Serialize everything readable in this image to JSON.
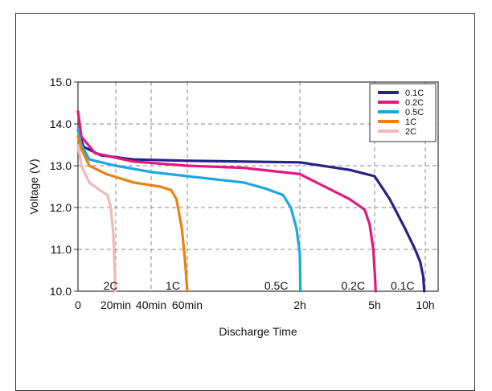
{
  "chart_data": {
    "type": "line",
    "title": "",
    "xlabel": "Discharge Time",
    "ylabel": "Voltage (V)",
    "ylim": [
      10.0,
      15.0
    ],
    "x_scale": "nonlinear (piecewise)",
    "x_ticks": [
      "0",
      "20min",
      "40min",
      "60min",
      "2h",
      "5h",
      "10h"
    ],
    "x_tick_hours": [
      0,
      0.333,
      0.667,
      1,
      2,
      5,
      10
    ],
    "y_ticks": [
      "10.0",
      "11.0",
      "12.0",
      "13.0",
      "14.0",
      "15.0"
    ],
    "y_tick_values": [
      10,
      11,
      12,
      13,
      14,
      15
    ],
    "grid": "dashed",
    "legend_position": "top-right",
    "series": [
      {
        "name": "0.1C",
        "color": "#23238a",
        "end_label": "0.1C",
        "points": [
          [
            0,
            13.85
          ],
          [
            0.05,
            13.45
          ],
          [
            0.2,
            13.25
          ],
          [
            0.5,
            13.15
          ],
          [
            1.0,
            13.12
          ],
          [
            2.0,
            13.08
          ],
          [
            4.0,
            12.9
          ],
          [
            5.0,
            12.75
          ],
          [
            6.5,
            12.2
          ],
          [
            8.0,
            11.5
          ],
          [
            9.0,
            11.0
          ],
          [
            9.5,
            10.7
          ],
          [
            9.8,
            10.35
          ],
          [
            9.9,
            10.0
          ]
        ]
      },
      {
        "name": "0.2C",
        "color": "#e0197d",
        "end_label": "0.2C",
        "points": [
          [
            0,
            14.3
          ],
          [
            0.03,
            13.7
          ],
          [
            0.15,
            13.3
          ],
          [
            0.5,
            13.1
          ],
          [
            1.0,
            13.0
          ],
          [
            1.5,
            12.95
          ],
          [
            2.0,
            12.8
          ],
          [
            3.0,
            12.5
          ],
          [
            4.0,
            12.2
          ],
          [
            4.6,
            11.95
          ],
          [
            4.8,
            11.6
          ],
          [
            4.95,
            11.0
          ],
          [
            5.05,
            10.3
          ],
          [
            5.1,
            10.0
          ]
        ]
      },
      {
        "name": "0.5C",
        "color": "#1da7e1",
        "end_label": "0.5C",
        "points": [
          [
            0,
            13.85
          ],
          [
            0.03,
            13.5
          ],
          [
            0.1,
            13.15
          ],
          [
            0.333,
            13.0
          ],
          [
            0.667,
            12.85
          ],
          [
            1.0,
            12.75
          ],
          [
            1.5,
            12.6
          ],
          [
            1.7,
            12.45
          ],
          [
            1.85,
            12.3
          ],
          [
            1.92,
            12.0
          ],
          [
            1.97,
            11.5
          ],
          [
            2.0,
            10.9
          ],
          [
            2.02,
            10.0
          ]
        ]
      },
      {
        "name": "1C",
        "color": "#ea8212",
        "end_label": "1C",
        "points": [
          [
            0,
            13.7
          ],
          [
            0.03,
            13.4
          ],
          [
            0.1,
            13.0
          ],
          [
            0.25,
            12.8
          ],
          [
            0.5,
            12.6
          ],
          [
            0.75,
            12.5
          ],
          [
            0.85,
            12.42
          ],
          [
            0.9,
            12.2
          ],
          [
            0.95,
            11.5
          ],
          [
            0.98,
            10.7
          ],
          [
            1.0,
            10.0
          ]
        ]
      },
      {
        "name": "2C",
        "color": "#f2b8b5",
        "end_label": "2C",
        "points": [
          [
            0,
            13.5
          ],
          [
            0.03,
            13.0
          ],
          [
            0.1,
            12.6
          ],
          [
            0.2,
            12.4
          ],
          [
            0.26,
            12.3
          ],
          [
            0.29,
            12.0
          ],
          [
            0.31,
            11.4
          ],
          [
            0.32,
            10.8
          ],
          [
            0.33,
            10.0
          ]
        ]
      }
    ]
  }
}
